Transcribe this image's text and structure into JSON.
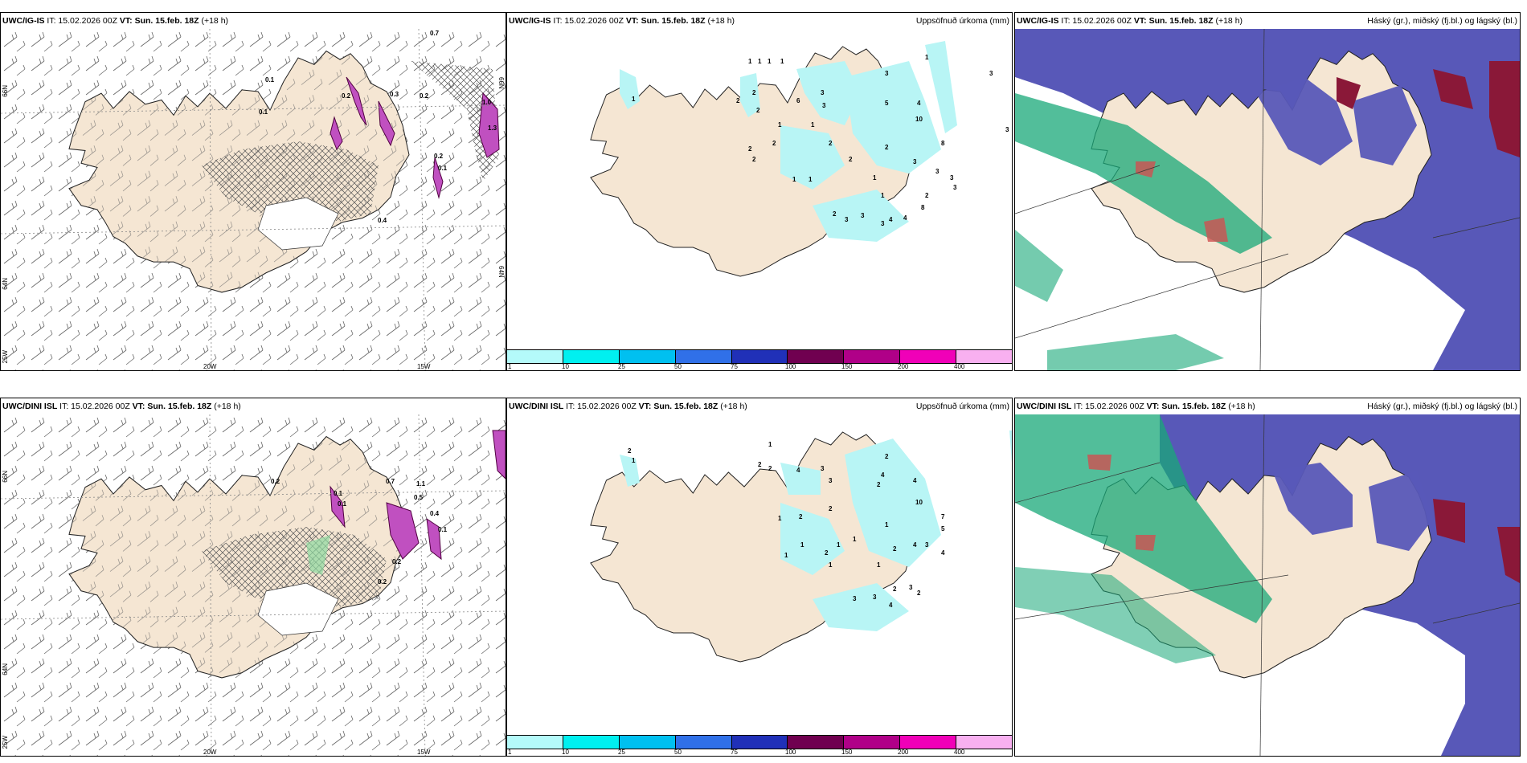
{
  "issue_text": "IT: 15.02.2026 00Z",
  "vt_label": "VT:",
  "vt_value": "Sun. 15.feb. 18Z",
  "lead": "(+18 h)",
  "rows": [
    {
      "model": "UWC/IG-IS"
    },
    {
      "model": "UWC/DINI ISL"
    }
  ],
  "precip_title": "Uppsöfnuð úrkoma (mm)",
  "cloud_title": "Háský (gr.), miðský (fj.bl.) og lágský (bl.)",
  "lon_labels": [
    "25W",
    "20W",
    "15W"
  ],
  "lat_labels": [
    "66N",
    "64N"
  ],
  "legend": {
    "colors": [
      "#b4fafa",
      "#00f0f0",
      "#00c0f0",
      "#3070e8",
      "#2030b8",
      "#700050",
      "#b00088",
      "#f000b8",
      "#f8b0f0"
    ],
    "ticks": [
      "1",
      "10",
      "25",
      "50",
      "75",
      "100",
      "150",
      "200",
      "400"
    ]
  },
  "colors": {
    "land": "#f5e6d3",
    "precip_light": "#b8f5f5",
    "cloud_high": "#5858b8",
    "cloud_mid": "#18a878",
    "cloud_low": "#8a1838",
    "wind_barb": "#555555",
    "mix_purple": "#c050c0"
  },
  "precip_top": [
    "1",
    "1",
    "1",
    "1",
    "1",
    "3",
    "3",
    "1",
    "3",
    "6",
    "2",
    "2",
    "2",
    "1",
    "3",
    "5",
    "4",
    "10",
    "1",
    "2",
    "8",
    "2",
    "2",
    "1",
    "1",
    "1",
    "2",
    "2",
    "3",
    "3",
    "3",
    "3",
    "2",
    "3",
    "3",
    "3",
    "4",
    "4",
    "8",
    "1",
    "2",
    "2",
    "3"
  ],
  "precip_bottom": [
    "1",
    "2",
    "2",
    "2",
    "4",
    "3",
    "2",
    "1",
    "3",
    "2",
    "4",
    "4",
    "10",
    "1",
    "2",
    "1",
    "1",
    "1",
    "2",
    "1",
    "2",
    "7",
    "5",
    "4",
    "1",
    "2",
    "4",
    "3",
    "3",
    "2",
    "3",
    "1",
    "1",
    "3",
    "4",
    "2"
  ],
  "wind_values_top": [
    "0.7",
    "0.2",
    "0.1",
    "1.0",
    "1.3",
    "0.3",
    "0.2",
    "0.4",
    "0.1",
    "0.1",
    "0.2"
  ],
  "wind_values_bottom": [
    "0.7",
    "0.1",
    "0.1",
    "0.2",
    "0.5",
    "0.4",
    "1.1",
    "0.1",
    "0.2",
    "0.2"
  ]
}
